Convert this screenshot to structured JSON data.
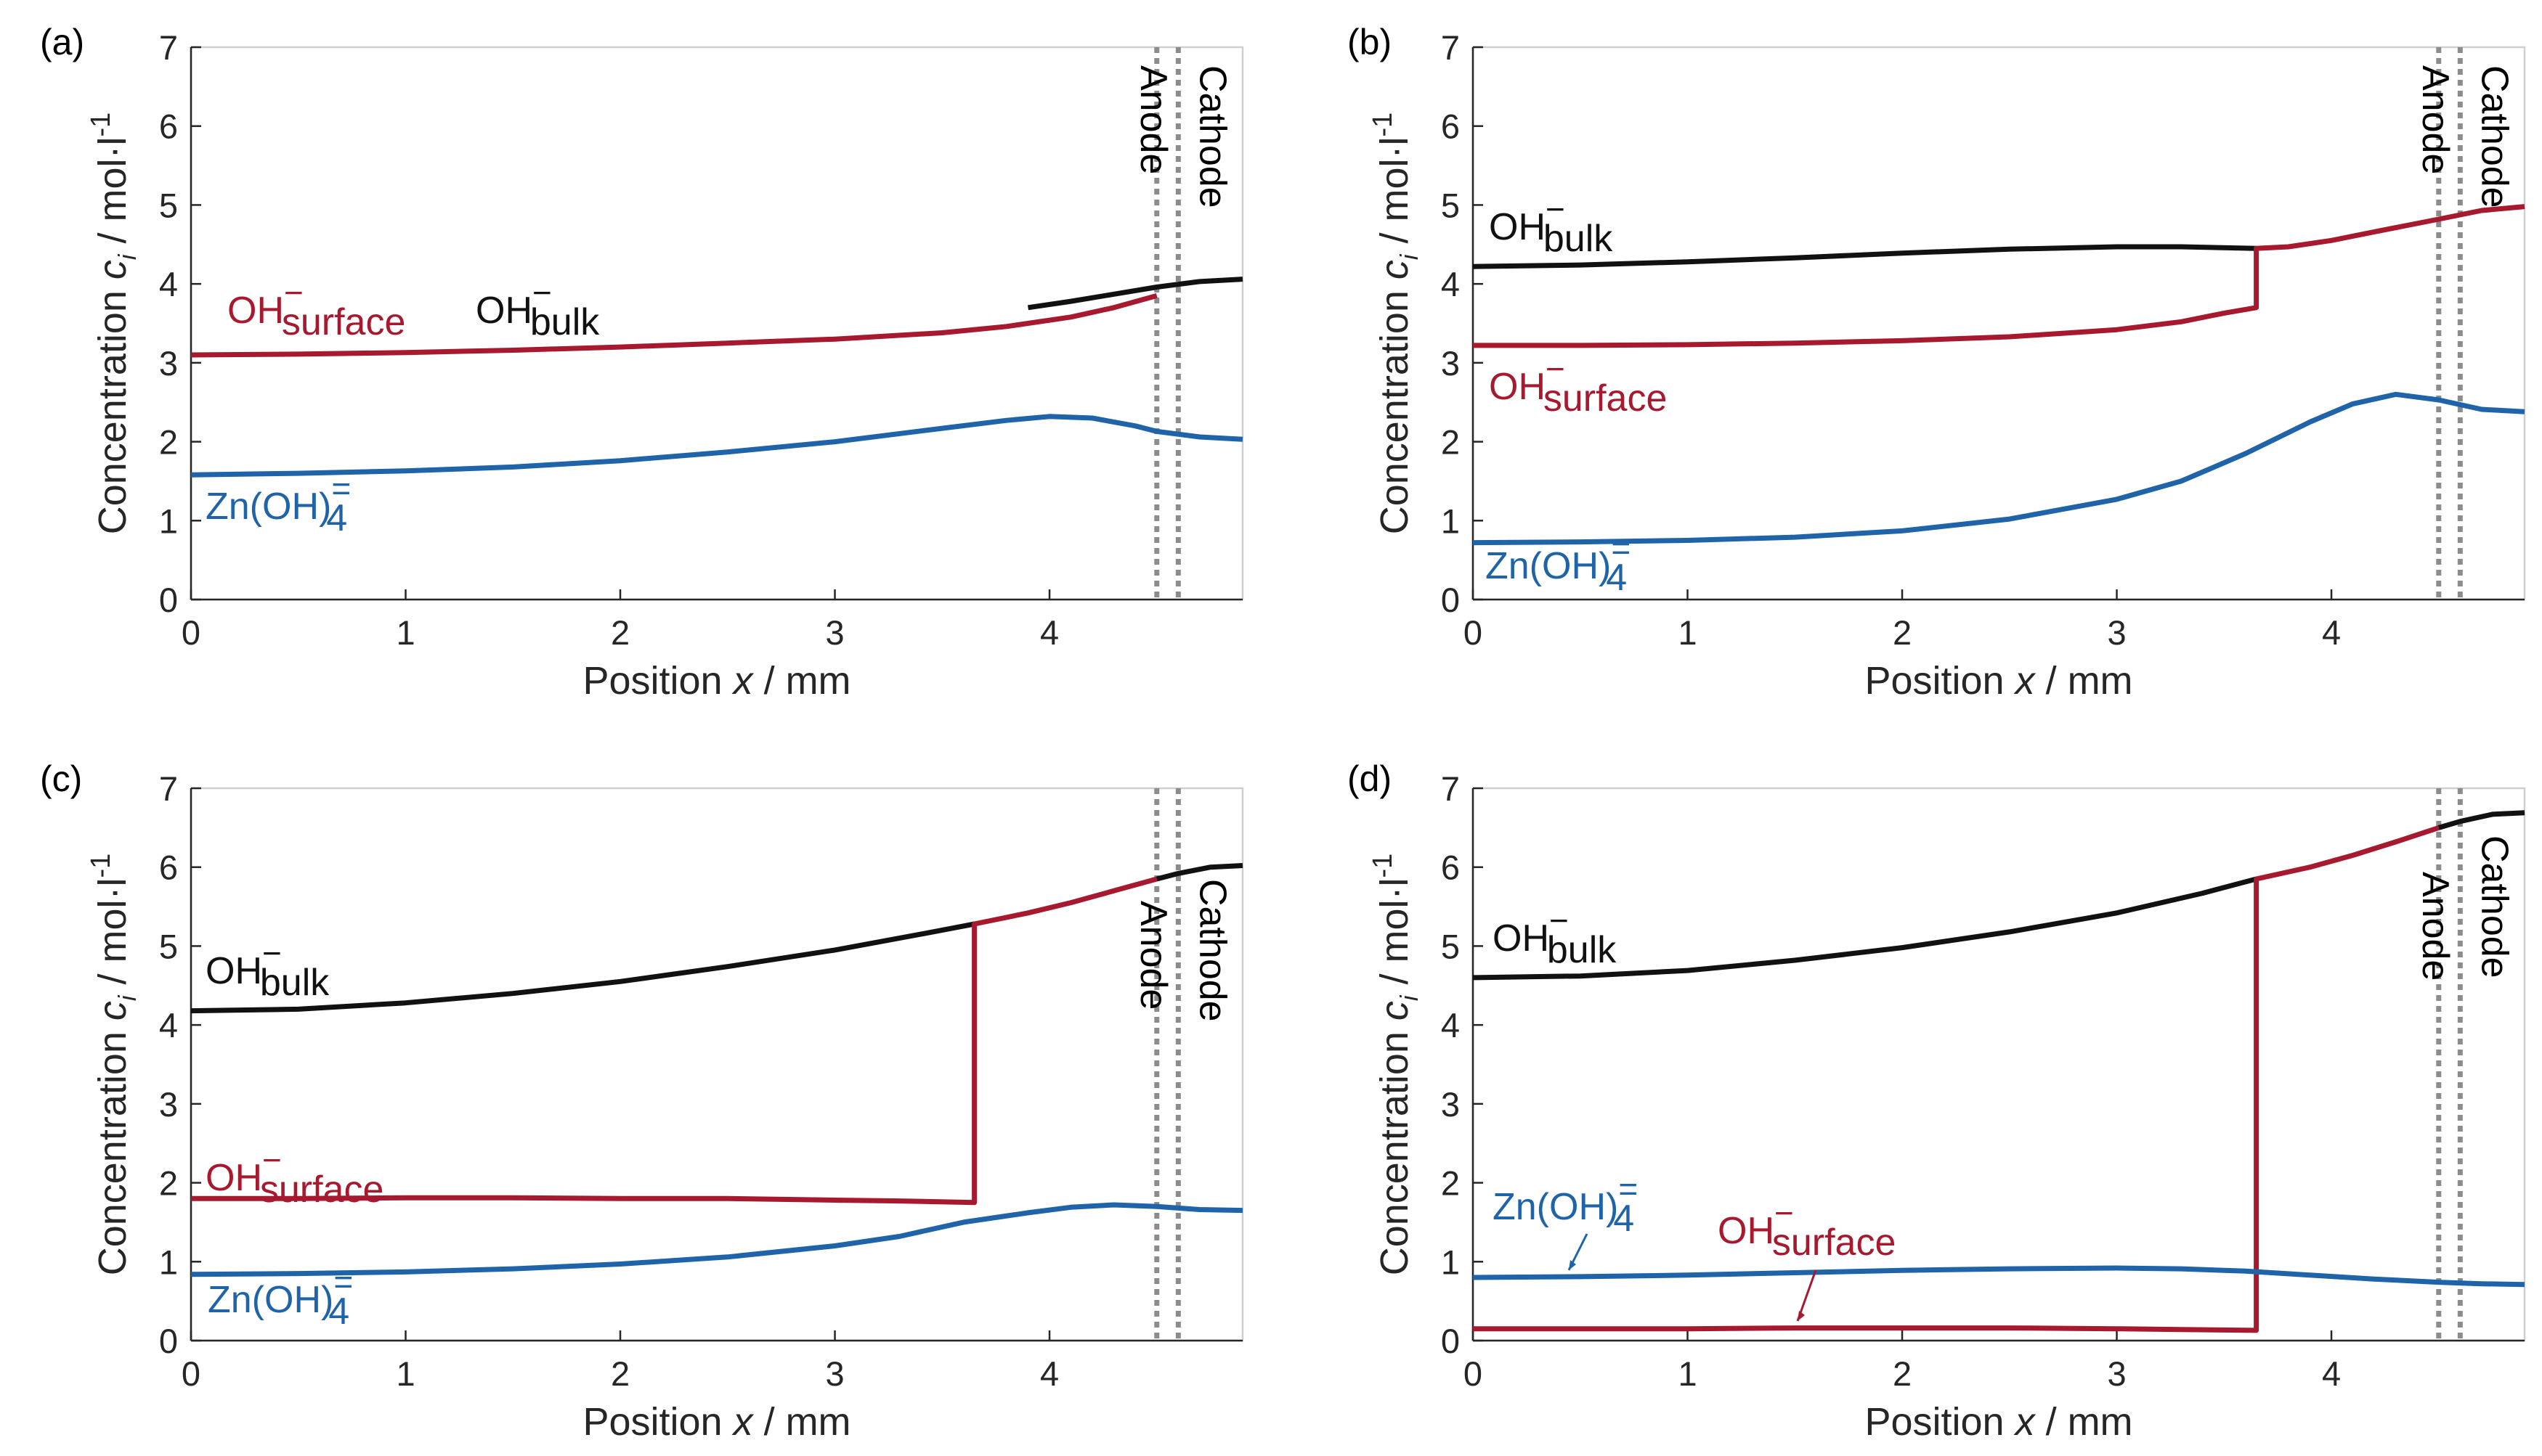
{
  "colors": {
    "bulk": "#111111",
    "surface": "#a6192e",
    "zincate": "#1f63a8",
    "electrode": "#8c8c8c"
  },
  "axes": {
    "xlabel_prefix": "Position",
    "xlabel_var": "x",
    "xlabel_unit": "/ mm",
    "ylabel_prefix": "Concentration",
    "ylabel_var": "c",
    "ylabel_sub": "i",
    "ylabel_unit": "/  mol·l",
    "ylabel_exp": "-1"
  },
  "chart_data": [
    {
      "type": "line",
      "panel": "(a)",
      "xlim": [
        0,
        4.9
      ],
      "ylim": [
        0,
        7
      ],
      "xticks": [
        0,
        1,
        2,
        3,
        4
      ],
      "yticks": [
        0,
        1,
        2,
        3,
        4,
        5,
        6,
        7
      ],
      "electrodes": [
        {
          "name": "Anode",
          "x": 4.5
        },
        {
          "name": "Cathode",
          "x": 4.6
        }
      ],
      "series": [
        {
          "name": "OH_bulk",
          "color": "#111111",
          "x": [
            3.9,
            4.1,
            4.3,
            4.5,
            4.7,
            4.9
          ],
          "y": [
            3.7,
            3.78,
            3.87,
            3.96,
            4.03,
            4.06
          ]
        },
        {
          "name": "OH_surface",
          "color": "#a6192e",
          "x": [
            0,
            0.5,
            1,
            1.5,
            2,
            2.5,
            3,
            3.5,
            3.8,
            4.1,
            4.3,
            4.5
          ],
          "y": [
            3.1,
            3.11,
            3.13,
            3.16,
            3.2,
            3.25,
            3.3,
            3.38,
            3.46,
            3.58,
            3.7,
            3.85
          ]
        },
        {
          "name": "Zn(OH)4",
          "color": "#1f63a8",
          "x": [
            0,
            0.5,
            1,
            1.5,
            2,
            2.5,
            3,
            3.5,
            3.8,
            4.0,
            4.2,
            4.4,
            4.5,
            4.7,
            4.9
          ],
          "y": [
            1.58,
            1.6,
            1.63,
            1.68,
            1.76,
            1.87,
            2.0,
            2.17,
            2.27,
            2.32,
            2.3,
            2.2,
            2.13,
            2.06,
            2.03
          ]
        }
      ],
      "labels": [
        {
          "text": "OH",
          "superscript": "−",
          "subscript": "surface",
          "series": "OH_surface"
        },
        {
          "text": "OH",
          "superscript": "−",
          "subscript": "bulk",
          "series": "OH_bulk"
        },
        {
          "text": "Zn(OH)",
          "superscript": "=",
          "subscript": "4",
          "series": "Zn(OH)4"
        }
      ]
    },
    {
      "type": "line",
      "panel": "(b)",
      "xlim": [
        0,
        4.9
      ],
      "ylim": [
        0,
        7
      ],
      "xticks": [
        0,
        1,
        2,
        3,
        4
      ],
      "yticks": [
        0,
        1,
        2,
        3,
        4,
        5,
        6,
        7
      ],
      "electrodes": [
        {
          "name": "Anode",
          "x": 4.5
        },
        {
          "name": "Cathode",
          "x": 4.6
        }
      ],
      "series": [
        {
          "name": "OH_bulk",
          "color": "#111111",
          "x": [
            0,
            0.5,
            1,
            1.5,
            2,
            2.5,
            3,
            3.3,
            3.65
          ],
          "y": [
            4.22,
            4.24,
            4.28,
            4.33,
            4.39,
            4.44,
            4.47,
            4.47,
            4.45
          ]
        },
        {
          "name": "OH_surface",
          "color": "#a6192e",
          "x": [
            0,
            0.5,
            1,
            1.5,
            2,
            2.5,
            3,
            3.3,
            3.5,
            3.65,
            3.65,
            3.8,
            4.0,
            4.2,
            4.5,
            4.7,
            4.9
          ],
          "y": [
            3.22,
            3.22,
            3.23,
            3.25,
            3.28,
            3.33,
            3.42,
            3.52,
            3.63,
            3.7,
            4.45,
            4.47,
            4.55,
            4.66,
            4.82,
            4.93,
            4.98
          ]
        },
        {
          "name": "Zn(OH)4",
          "color": "#1f63a8",
          "x": [
            0,
            0.5,
            1,
            1.5,
            2,
            2.5,
            3,
            3.3,
            3.6,
            3.9,
            4.1,
            4.3,
            4.5,
            4.7,
            4.9
          ],
          "y": [
            0.72,
            0.73,
            0.75,
            0.79,
            0.87,
            1.02,
            1.27,
            1.5,
            1.85,
            2.25,
            2.48,
            2.6,
            2.53,
            2.41,
            2.38
          ]
        }
      ],
      "labels": [
        {
          "text": "OH",
          "superscript": "−",
          "subscript": "bulk",
          "series": "OH_bulk"
        },
        {
          "text": "OH",
          "superscript": "−",
          "subscript": "surface",
          "series": "OH_surface"
        },
        {
          "text": "Zn(OH)",
          "superscript": "=",
          "subscript": "4",
          "series": "Zn(OH)4"
        }
      ]
    },
    {
      "type": "line",
      "panel": "(c)",
      "xlim": [
        0,
        4.9
      ],
      "ylim": [
        0,
        7
      ],
      "xticks": [
        0,
        1,
        2,
        3,
        4
      ],
      "yticks": [
        0,
        1,
        2,
        3,
        4,
        5,
        6,
        7
      ],
      "electrodes": [
        {
          "name": "Anode",
          "x": 4.5
        },
        {
          "name": "Cathode",
          "x": 4.6
        }
      ],
      "series": [
        {
          "name": "OH_bulk",
          "color": "#111111",
          "x": [
            0,
            0.5,
            1,
            1.5,
            2,
            2.5,
            3,
            3.4,
            3.65
          ],
          "y": [
            4.18,
            4.2,
            4.28,
            4.4,
            4.55,
            4.74,
            4.95,
            5.15,
            5.28
          ]
        },
        {
          "name": "OH_surface",
          "color": "#a6192e",
          "x": [
            0,
            0.5,
            1,
            1.5,
            2,
            2.5,
            3,
            3.3,
            3.65,
            3.65,
            3.9,
            4.1,
            4.3,
            4.5
          ],
          "y": [
            1.8,
            1.8,
            1.81,
            1.81,
            1.8,
            1.8,
            1.78,
            1.77,
            1.75,
            5.28,
            5.42,
            5.55,
            5.7,
            5.85
          ]
        },
        {
          "name": "OH_bulk_cathode",
          "color": "#111111",
          "x": [
            4.5,
            4.6,
            4.75,
            4.9
          ],
          "y": [
            5.85,
            5.92,
            6.0,
            6.02
          ]
        },
        {
          "name": "Zn(OH)4",
          "color": "#1f63a8",
          "x": [
            0,
            0.5,
            1,
            1.5,
            2,
            2.5,
            3,
            3.3,
            3.6,
            3.9,
            4.1,
            4.3,
            4.5,
            4.7,
            4.9
          ],
          "y": [
            0.84,
            0.85,
            0.87,
            0.91,
            0.97,
            1.06,
            1.2,
            1.32,
            1.5,
            1.62,
            1.69,
            1.72,
            1.7,
            1.66,
            1.65
          ]
        }
      ],
      "labels": [
        {
          "text": "OH",
          "superscript": "−",
          "subscript": "bulk",
          "series": "OH_bulk"
        },
        {
          "text": "OH",
          "superscript": "−",
          "subscript": "surface",
          "series": "OH_surface"
        },
        {
          "text": "Zn(OH)",
          "superscript": "=",
          "subscript": "4",
          "series": "Zn(OH)4"
        }
      ]
    },
    {
      "type": "line",
      "panel": "(d)",
      "xlim": [
        0,
        4.9
      ],
      "ylim": [
        0,
        7
      ],
      "xticks": [
        0,
        1,
        2,
        3,
        4
      ],
      "yticks": [
        0,
        1,
        2,
        3,
        4,
        5,
        6,
        7
      ],
      "electrodes": [
        {
          "name": "Anode",
          "x": 4.5
        },
        {
          "name": "Cathode",
          "x": 4.6
        }
      ],
      "series": [
        {
          "name": "OH_bulk",
          "color": "#111111",
          "x": [
            0,
            0.5,
            1,
            1.5,
            2,
            2.5,
            3,
            3.4,
            3.65
          ],
          "y": [
            4.6,
            4.62,
            4.69,
            4.82,
            4.98,
            5.18,
            5.42,
            5.67,
            5.85
          ]
        },
        {
          "name": "OH_surface",
          "color": "#a6192e",
          "x": [
            0,
            0.5,
            1,
            1.5,
            2,
            2.5,
            3,
            3.3,
            3.65,
            3.65,
            3.9,
            4.1,
            4.3,
            4.5
          ],
          "y": [
            0.15,
            0.15,
            0.15,
            0.16,
            0.16,
            0.16,
            0.15,
            0.14,
            0.13,
            5.85,
            6.0,
            6.15,
            6.32,
            6.5
          ]
        },
        {
          "name": "OH_bulk_cathode",
          "color": "#111111",
          "x": [
            4.5,
            4.6,
            4.75,
            4.9
          ],
          "y": [
            6.5,
            6.58,
            6.67,
            6.69
          ]
        },
        {
          "name": "Zn(OH)4",
          "color": "#1f63a8",
          "x": [
            0,
            0.5,
            1,
            1.5,
            2,
            2.5,
            3,
            3.3,
            3.6,
            3.9,
            4.2,
            4.5,
            4.7,
            4.9
          ],
          "y": [
            0.8,
            0.81,
            0.83,
            0.86,
            0.89,
            0.91,
            0.92,
            0.91,
            0.88,
            0.83,
            0.78,
            0.74,
            0.72,
            0.71
          ]
        }
      ],
      "labels": [
        {
          "text": "OH",
          "superscript": "−",
          "subscript": "bulk",
          "series": "OH_bulk"
        },
        {
          "text": "Zn(OH)",
          "superscript": "=",
          "subscript": "4",
          "series": "Zn(OH)4"
        },
        {
          "text": "OH",
          "superscript": "−",
          "subscript": "surface",
          "series": "OH_surface"
        }
      ]
    }
  ]
}
